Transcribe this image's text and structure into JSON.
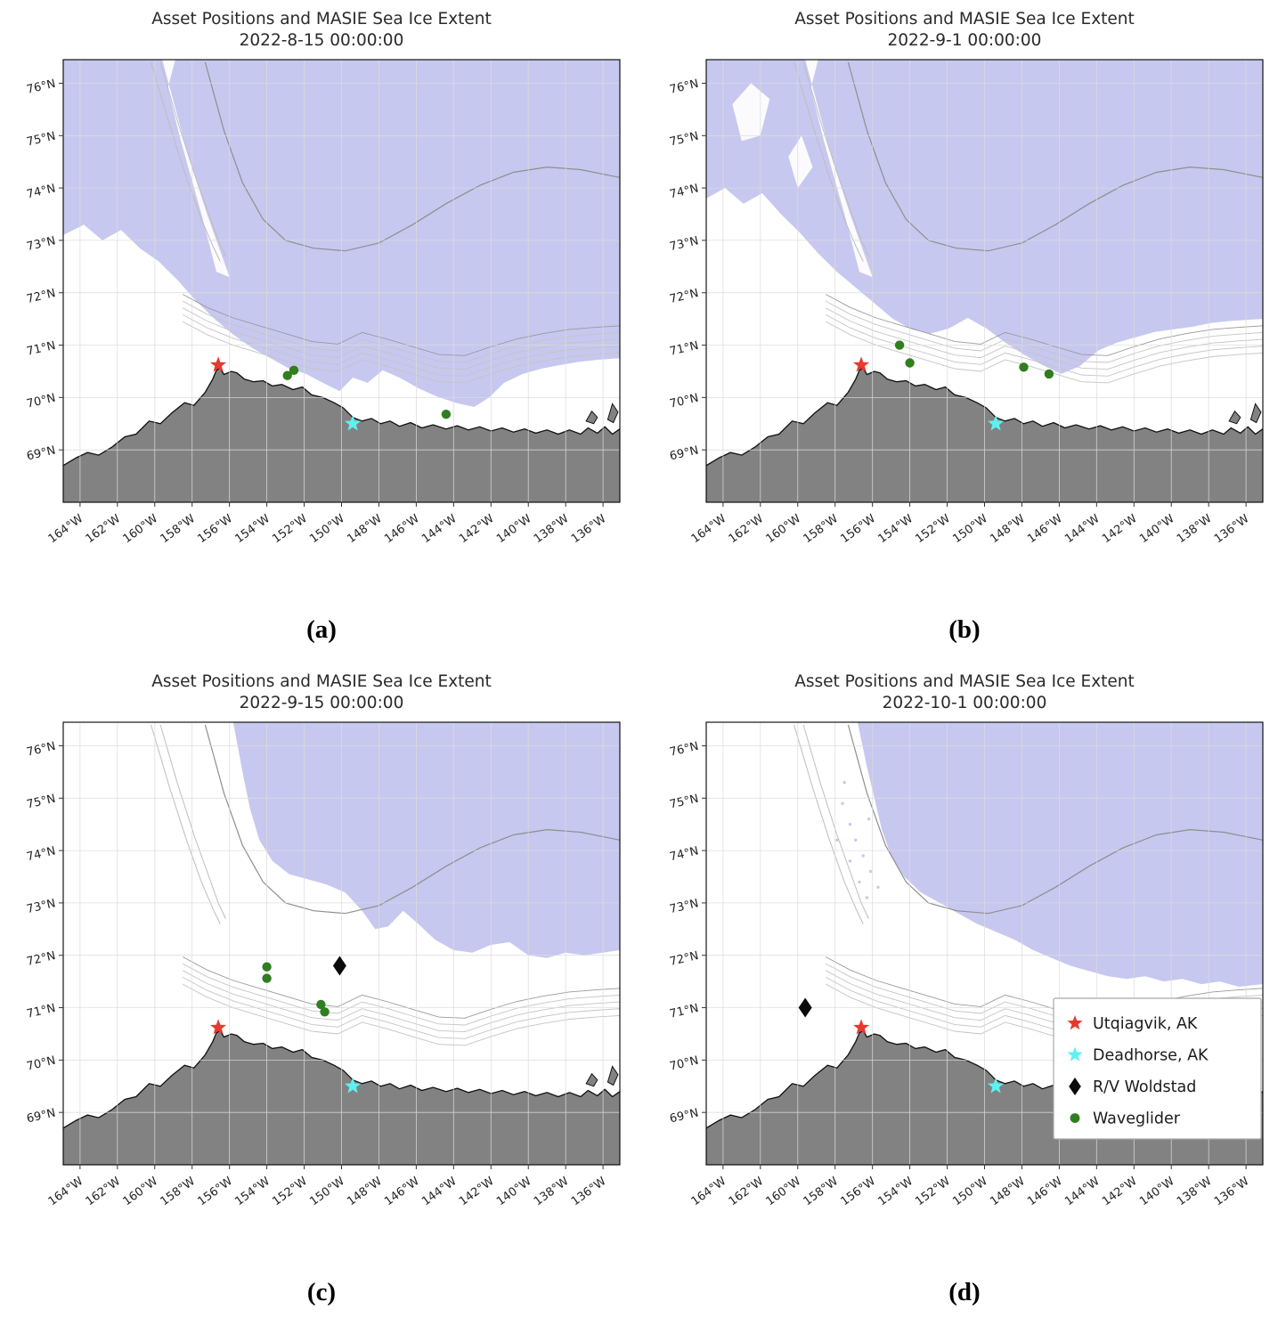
{
  "figure": {
    "title_line1": "Asset Positions and MASIE Sea Ice Extent",
    "panels": [
      {
        "id": "a",
        "subtitle": "2022-8-15 00:00:00",
        "label": "(a)",
        "legend": false,
        "ice": [
          [
            -164.9,
            73.1
          ],
          [
            -163.8,
            73.3
          ],
          [
            -162.8,
            73.0
          ],
          [
            -161.8,
            73.2
          ],
          [
            -160.8,
            72.85
          ],
          [
            -159.8,
            72.6
          ],
          [
            -158.8,
            72.25
          ],
          [
            -157.8,
            71.85
          ],
          [
            -156.8,
            71.5
          ],
          [
            -155.8,
            71.2
          ],
          [
            -154.8,
            70.95
          ],
          [
            -153.8,
            70.75
          ],
          [
            -152.8,
            70.55
          ],
          [
            -151.9,
            70.45
          ],
          [
            -151.0,
            70.28
          ],
          [
            -150.1,
            70.12
          ],
          [
            -149.4,
            70.38
          ],
          [
            -148.6,
            70.28
          ],
          [
            -147.8,
            70.52
          ],
          [
            -146.9,
            70.38
          ],
          [
            -145.9,
            70.18
          ],
          [
            -144.9,
            70.02
          ],
          [
            -143.9,
            69.9
          ],
          [
            -142.9,
            69.82
          ],
          [
            -142.1,
            70.0
          ],
          [
            -141.3,
            70.28
          ],
          [
            -140.3,
            70.45
          ],
          [
            -139.3,
            70.55
          ],
          [
            -138.3,
            70.62
          ],
          [
            -137.3,
            70.68
          ],
          [
            -136.3,
            70.72
          ],
          [
            -135.1,
            70.75
          ]
        ],
        "leads": [
          [
            [
              -159.6,
              76.45
            ],
            [
              -158.2,
              74.6
            ],
            [
              -157.2,
              73.5
            ],
            [
              -156.5,
              72.8
            ],
            [
              -156.0,
              72.3
            ],
            [
              -156.7,
              72.4
            ],
            [
              -157.5,
              73.5
            ],
            [
              -158.6,
              74.9
            ],
            [
              -159.3,
              75.9
            ],
            [
              -158.9,
              76.45
            ]
          ]
        ],
        "speckles": [],
        "markers": {
          "utqiagvik": [
            [
              -156.6,
              70.62
            ]
          ],
          "deadhorse": [
            [
              -149.4,
              69.5
            ]
          ],
          "rv_woldstad": [],
          "waveglider": [
            [
              -152.9,
              70.42
            ],
            [
              -152.55,
              70.52
            ],
            [
              -144.4,
              69.68
            ]
          ]
        }
      },
      {
        "id": "b",
        "subtitle": "2022-9-1 00:00:00",
        "label": "(b)",
        "legend": false,
        "ice": [
          [
            -164.9,
            73.8
          ],
          [
            -163.9,
            74.0
          ],
          [
            -162.9,
            73.7
          ],
          [
            -161.9,
            73.9
          ],
          [
            -160.9,
            73.5
          ],
          [
            -159.9,
            73.15
          ],
          [
            -158.9,
            72.75
          ],
          [
            -157.9,
            72.4
          ],
          [
            -156.9,
            72.1
          ],
          [
            -155.9,
            71.8
          ],
          [
            -154.9,
            71.5
          ],
          [
            -153.9,
            71.3
          ],
          [
            -152.9,
            71.22
          ],
          [
            -151.9,
            71.32
          ],
          [
            -150.9,
            71.52
          ],
          [
            -149.9,
            71.32
          ],
          [
            -148.9,
            71.05
          ],
          [
            -147.9,
            70.82
          ],
          [
            -146.9,
            70.62
          ],
          [
            -145.9,
            70.45
          ],
          [
            -144.9,
            70.6
          ],
          [
            -143.9,
            70.9
          ],
          [
            -142.9,
            71.05
          ],
          [
            -141.9,
            71.15
          ],
          [
            -140.9,
            71.25
          ],
          [
            -139.9,
            71.3
          ],
          [
            -138.9,
            71.35
          ],
          [
            -137.9,
            71.42
          ],
          [
            -136.9,
            71.46
          ],
          [
            -135.1,
            71.5
          ]
        ],
        "leads": [
          [
            [
              -159.6,
              76.45
            ],
            [
              -158.2,
              74.6
            ],
            [
              -157.2,
              73.5
            ],
            [
              -156.5,
              72.8
            ],
            [
              -156.0,
              72.3
            ],
            [
              -156.7,
              72.4
            ],
            [
              -157.5,
              73.5
            ],
            [
              -158.6,
              74.9
            ],
            [
              -159.3,
              75.9
            ],
            [
              -158.9,
              76.45
            ]
          ],
          [
            [
              -163.5,
              75.6
            ],
            [
              -162.5,
              76.0
            ],
            [
              -161.5,
              75.7
            ],
            [
              -162.0,
              75.0
            ],
            [
              -163.0,
              74.9
            ]
          ],
          [
            [
              -160.5,
              74.6
            ],
            [
              -159.8,
              75.0
            ],
            [
              -159.2,
              74.4
            ],
            [
              -160.0,
              74.0
            ]
          ]
        ],
        "speckles": [],
        "markers": {
          "utqiagvik": [
            [
              -156.6,
              70.62
            ]
          ],
          "deadhorse": [
            [
              -149.4,
              69.5
            ]
          ],
          "rv_woldstad": [],
          "waveglider": [
            [
              -154.55,
              71.0
            ],
            [
              -154.0,
              70.66
            ],
            [
              -147.9,
              70.58
            ],
            [
              -146.55,
              70.45
            ]
          ]
        }
      },
      {
        "id": "c",
        "subtitle": "2022-9-15 00:00:00",
        "label": "(c)",
        "legend": false,
        "ice": [
          [
            -155.8,
            76.45
          ],
          [
            -155.3,
            75.5
          ],
          [
            -154.9,
            74.8
          ],
          [
            -154.4,
            74.2
          ],
          [
            -153.7,
            73.8
          ],
          [
            -152.8,
            73.55
          ],
          [
            -151.8,
            73.45
          ],
          [
            -150.8,
            73.35
          ],
          [
            -149.8,
            73.2
          ],
          [
            -148.9,
            72.85
          ],
          [
            -148.2,
            72.5
          ],
          [
            -147.5,
            72.55
          ],
          [
            -146.7,
            72.85
          ],
          [
            -145.9,
            72.6
          ],
          [
            -145.0,
            72.3
          ],
          [
            -144.0,
            72.1
          ],
          [
            -143.0,
            72.05
          ],
          [
            -142.0,
            72.2
          ],
          [
            -141.0,
            72.25
          ],
          [
            -140.0,
            72.0
          ],
          [
            -139.0,
            71.95
          ],
          [
            -138.0,
            72.05
          ],
          [
            -137.0,
            72.0
          ],
          [
            -136.0,
            72.05
          ],
          [
            -135.1,
            72.1
          ]
        ],
        "leads": [],
        "speckles": [],
        "markers": {
          "utqiagvik": [
            [
              -156.6,
              70.62
            ]
          ],
          "deadhorse": [
            [
              -149.4,
              69.5
            ]
          ],
          "rv_woldstad": [
            [
              -150.1,
              71.8
            ]
          ],
          "waveglider": [
            [
              -154.0,
              71.78
            ],
            [
              -154.0,
              71.56
            ],
            [
              -151.1,
              71.06
            ],
            [
              -150.9,
              70.92
            ]
          ]
        }
      },
      {
        "id": "d",
        "subtitle": "2022-10-1 00:00:00",
        "label": "(d)",
        "legend": true,
        "ice": [
          [
            -156.8,
            76.45
          ],
          [
            -156.3,
            75.6
          ],
          [
            -155.9,
            75.0
          ],
          [
            -155.5,
            74.4
          ],
          [
            -155.0,
            73.9
          ],
          [
            -154.3,
            73.5
          ],
          [
            -153.4,
            73.2
          ],
          [
            -152.4,
            73.0
          ],
          [
            -151.4,
            72.8
          ],
          [
            -150.4,
            72.6
          ],
          [
            -149.4,
            72.45
          ],
          [
            -148.4,
            72.3
          ],
          [
            -147.4,
            72.1
          ],
          [
            -146.4,
            71.95
          ],
          [
            -145.4,
            71.8
          ],
          [
            -144.4,
            71.7
          ],
          [
            -143.4,
            71.6
          ],
          [
            -142.4,
            71.55
          ],
          [
            -141.4,
            71.6
          ],
          [
            -140.4,
            71.5
          ],
          [
            -139.4,
            71.55
          ],
          [
            -138.4,
            71.45
          ],
          [
            -137.4,
            71.5
          ],
          [
            -136.4,
            71.4
          ],
          [
            -135.1,
            71.45
          ]
        ],
        "leads": [],
        "speckles": [
          [
            -157.6,
            74.9
          ],
          [
            -157.2,
            74.5
          ],
          [
            -156.9,
            74.2
          ],
          [
            -157.9,
            74.2
          ],
          [
            -156.5,
            73.9
          ],
          [
            -157.2,
            73.8
          ],
          [
            -156.1,
            73.6
          ],
          [
            -156.7,
            73.4
          ],
          [
            -155.7,
            73.3
          ],
          [
            -156.3,
            73.1
          ],
          [
            -157.5,
            75.3
          ],
          [
            -156.2,
            74.6
          ]
        ],
        "markers": {
          "utqiagvik": [
            [
              -156.6,
              70.62
            ]
          ],
          "deadhorse": [
            [
              -149.4,
              69.5
            ]
          ],
          "rv_woldstad": [
            [
              -159.6,
              71.0
            ]
          ],
          "waveglider": []
        }
      }
    ],
    "axes": {
      "lat_values": [
        76,
        75,
        74,
        73,
        72,
        71,
        70,
        69
      ],
      "lat_labels": [
        "76°N",
        "75°N",
        "74°N",
        "73°N",
        "72°N",
        "71°N",
        "70°N",
        "69°N"
      ],
      "lon_values": [
        -164,
        -162,
        -160,
        -158,
        -156,
        -154,
        -152,
        -150,
        -148,
        -146,
        -144,
        -142,
        -140,
        -138,
        -136
      ],
      "lon_labels": [
        "164°W",
        "162°W",
        "160°W",
        "158°W",
        "156°W",
        "154°W",
        "152°W",
        "150°W",
        "148°W",
        "146°W",
        "144°W",
        "142°W",
        "140°W",
        "138°W",
        "136°W"
      ]
    },
    "legend": {
      "items": [
        {
          "label": "Utqiagvik, AK",
          "type": "star",
          "color": "#e8392e"
        },
        {
          "label": "Deadhorse, AK",
          "type": "star",
          "color": "#5ff1f1"
        },
        {
          "label": "R/V Woldstad",
          "type": "diamond",
          "color": "#0a0a0a"
        },
        {
          "label": "Waveglider",
          "type": "dot",
          "color": "#2f7e1f"
        }
      ]
    },
    "colors": {
      "ice": "#c7c8ef",
      "land": "#828282",
      "coast": "#101010",
      "grid": "#dcdcdc",
      "ocean": "#ffffff",
      "contour_light": "#c4c4c4",
      "contour_dark": "#8e8e8e",
      "utqiagvik": "#e8392e",
      "deadhorse": "#5ff1f1",
      "rv_woldstad": "#0a0a0a",
      "waveglider": "#2f7e1f",
      "legend_border": "#a8a8a8",
      "text": "#262626"
    },
    "coastline": [
      [
        -164.9,
        68.7
      ],
      [
        -164.2,
        68.85
      ],
      [
        -163.6,
        68.95
      ],
      [
        -163.0,
        68.9
      ],
      [
        -162.3,
        69.05
      ],
      [
        -161.6,
        69.25
      ],
      [
        -161.0,
        69.3
      ],
      [
        -160.3,
        69.55
      ],
      [
        -159.7,
        69.5
      ],
      [
        -159.1,
        69.7
      ],
      [
        -158.4,
        69.9
      ],
      [
        -157.9,
        69.85
      ],
      [
        -157.3,
        70.1
      ],
      [
        -156.9,
        70.35
      ],
      [
        -156.7,
        70.52
      ],
      [
        -156.5,
        70.56
      ],
      [
        -156.3,
        70.44
      ],
      [
        -155.9,
        70.5
      ],
      [
        -155.6,
        70.47
      ],
      [
        -155.2,
        70.35
      ],
      [
        -154.7,
        70.3
      ],
      [
        -154.2,
        70.32
      ],
      [
        -153.7,
        70.22
      ],
      [
        -153.2,
        70.25
      ],
      [
        -152.6,
        70.15
      ],
      [
        -152.1,
        70.2
      ],
      [
        -151.6,
        70.05
      ],
      [
        -151.0,
        70.0
      ],
      [
        -150.4,
        69.9
      ],
      [
        -149.9,
        69.8
      ],
      [
        -149.4,
        69.62
      ],
      [
        -148.9,
        69.55
      ],
      [
        -148.4,
        69.6
      ],
      [
        -147.9,
        69.5
      ],
      [
        -147.4,
        69.55
      ],
      [
        -146.9,
        69.45
      ],
      [
        -146.3,
        69.52
      ],
      [
        -145.7,
        69.42
      ],
      [
        -145.1,
        69.48
      ],
      [
        -144.4,
        69.4
      ],
      [
        -143.8,
        69.46
      ],
      [
        -143.2,
        69.38
      ],
      [
        -142.6,
        69.44
      ],
      [
        -142.0,
        69.36
      ],
      [
        -141.4,
        69.42
      ],
      [
        -140.8,
        69.34
      ],
      [
        -140.2,
        69.4
      ],
      [
        -139.6,
        69.32
      ],
      [
        -139.0,
        69.38
      ],
      [
        -138.4,
        69.3
      ],
      [
        -137.8,
        69.38
      ],
      [
        -137.2,
        69.3
      ],
      [
        -136.8,
        69.42
      ],
      [
        -136.3,
        69.32
      ],
      [
        -135.9,
        69.44
      ],
      [
        -135.5,
        69.3
      ],
      [
        -135.1,
        69.4
      ]
    ],
    "islands": [
      [
        [
          -136.9,
          69.55
        ],
        [
          -136.6,
          69.74
        ],
        [
          -136.3,
          69.62
        ],
        [
          -136.5,
          69.5
        ]
      ],
      [
        [
          -135.75,
          69.58
        ],
        [
          -135.5,
          69.88
        ],
        [
          -135.2,
          69.72
        ],
        [
          -135.45,
          69.52
        ]
      ]
    ]
  }
}
